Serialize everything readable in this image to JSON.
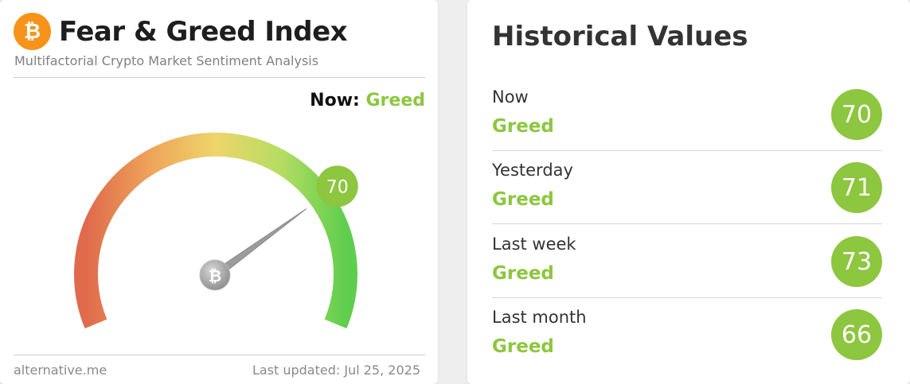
{
  "widget": {
    "title": "Fear & Greed Index",
    "subtitle": "Multifactorial Crypto Market Sentiment Analysis",
    "now_label": "Now:",
    "now_classification": "Greed",
    "current_value": "70",
    "footer_source": "alternative.me",
    "footer_updated": "Last updated: Jul 25, 2025",
    "logo_icon": "bitcoin-icon"
  },
  "gauge": {
    "min": 0,
    "max": 100,
    "value": 70,
    "center_icon": "bitcoin-icon"
  },
  "history": {
    "title": "Historical Values",
    "rows": [
      {
        "period": "Now",
        "classification": "Greed",
        "value": "70"
      },
      {
        "period": "Yesterday",
        "classification": "Greed",
        "value": "71"
      },
      {
        "period": "Last week",
        "classification": "Greed",
        "value": "73"
      },
      {
        "period": "Last month",
        "classification": "Greed",
        "value": "66"
      }
    ]
  },
  "colors": {
    "greed": "#8dc63f",
    "bitcoin": "#f7931a",
    "fear": "#e06a4a"
  }
}
